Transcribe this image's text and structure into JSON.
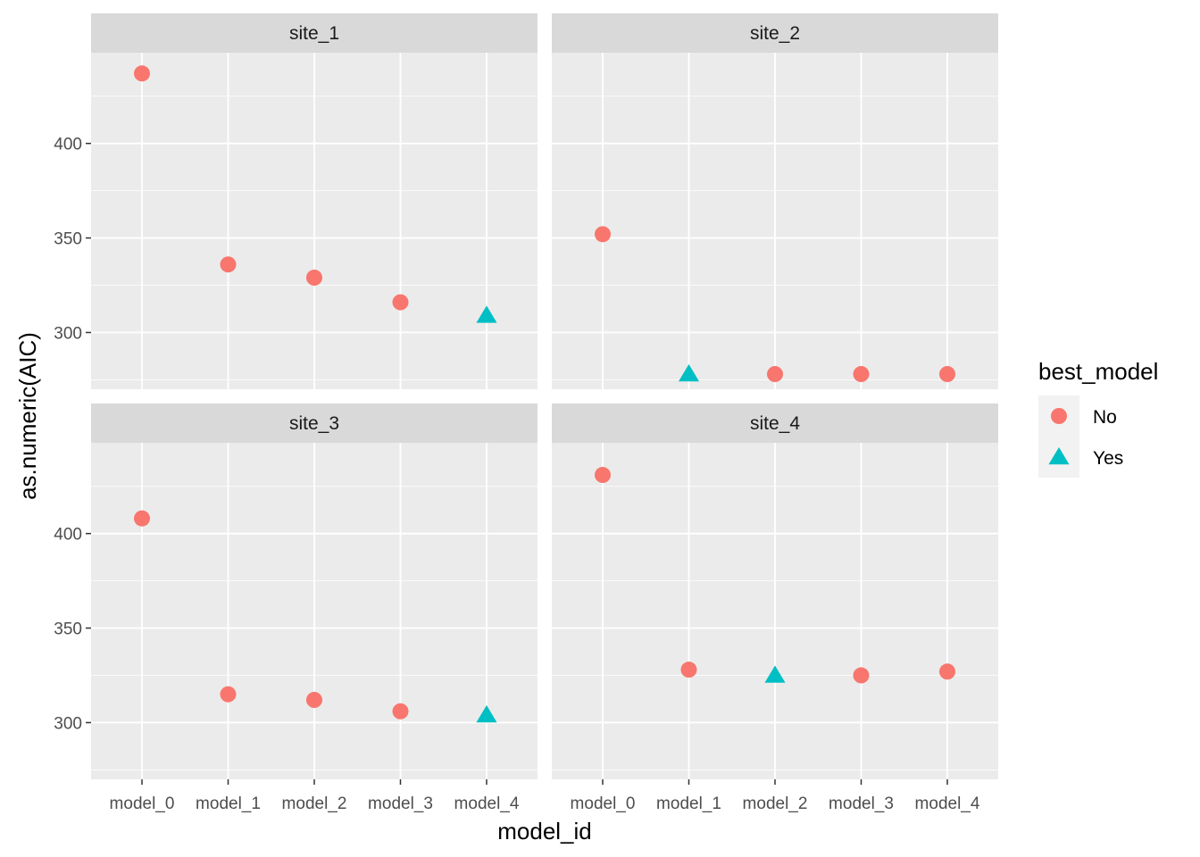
{
  "chart_data": {
    "type": "scatter",
    "xlabel": "model_id",
    "ylabel": "as.numeric(AIC)",
    "categories": [
      "model_0",
      "model_1",
      "model_2",
      "model_3",
      "model_4"
    ],
    "y_ticks": [
      300,
      350,
      400
    ],
    "ylim": [
      270,
      448
    ],
    "grid": true,
    "legend": {
      "title": "best_model",
      "position": "right",
      "entries": [
        {
          "label": "No",
          "shape": "circle",
          "color": "#F8766D"
        },
        {
          "label": "Yes",
          "shape": "triangle",
          "color": "#00BFC4"
        }
      ]
    },
    "facets": [
      {
        "name": "site_1",
        "values": [
          437,
          336,
          329,
          316,
          309
        ],
        "best_model": [
          "No",
          "No",
          "No",
          "No",
          "Yes"
        ]
      },
      {
        "name": "site_2",
        "values": [
          352,
          278,
          278,
          278,
          278
        ],
        "best_model": [
          "No",
          "Yes",
          "No",
          "No",
          "No"
        ]
      },
      {
        "name": "site_3",
        "values": [
          408,
          315,
          312,
          306,
          304
        ],
        "best_model": [
          "No",
          "No",
          "No",
          "No",
          "Yes"
        ]
      },
      {
        "name": "site_4",
        "values": [
          431,
          328,
          325,
          325,
          327
        ],
        "best_model": [
          "No",
          "No",
          "Yes",
          "No",
          "No"
        ]
      }
    ]
  }
}
